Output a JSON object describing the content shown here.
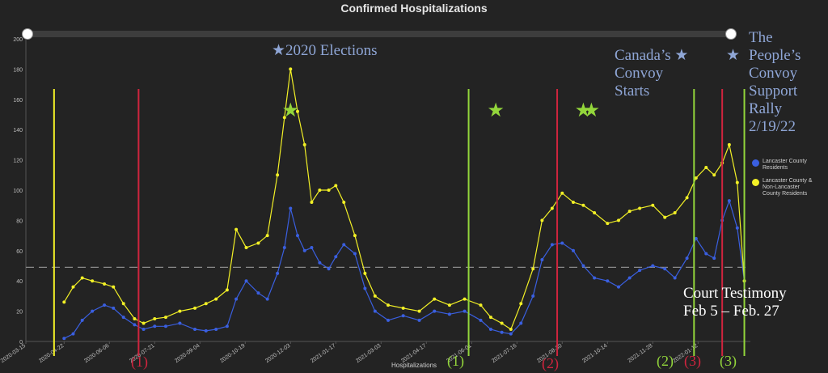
{
  "title": "Confirmed Hospitalizations",
  "x_axis_title": "Hospitalizations",
  "legend": [
    {
      "label": "Lancaster County Residents",
      "color": "#3a5fe0"
    },
    {
      "label": "Lancaster County & Non-Lancaster County Residents",
      "color": "#f2f026"
    }
  ],
  "annotations": {
    "elections": "2020 Elections",
    "canada": [
      "Canada’s",
      "Convoy",
      "Starts"
    ],
    "peoples": [
      "The",
      "People’s",
      "Convoy",
      "Support",
      "Rally",
      "2/19/22"
    ],
    "court": [
      "Court Testimony",
      "Feb 5 – Feb. 27"
    ]
  },
  "markers": [
    {
      "text": "(1)",
      "color": "#d0243e"
    },
    {
      "text": "(1)",
      "color": "#93d63b"
    },
    {
      "text": "(2)",
      "color": "#d0243e"
    },
    {
      "text": "(2)",
      "color": "#93d63b"
    },
    {
      "text": "(3)",
      "color": "#d0243e"
    },
    {
      "text": "(3)",
      "color": "#93d63b"
    }
  ],
  "chart_data": {
    "type": "line",
    "title": "Confirmed Hospitalizations",
    "xlabel": "Hospitalizations",
    "ylabel": "",
    "ylim": [
      0,
      200
    ],
    "yticks": [
      0,
      20,
      40,
      60,
      80,
      100,
      120,
      140,
      160,
      180,
      200
    ],
    "xtick_labels": [
      "2020-03-15",
      "2020-04-22",
      "2020-06-06",
      "2020-07-21",
      "2020-09-04",
      "2020-10-19",
      "2020-12-03",
      "2021-01-17",
      "2021-03-03",
      "2021-04-17",
      "2021-06-01",
      "2021-07-16",
      "2021-08-30",
      "2021-10-14",
      "2021-11-28",
      "2022-01-12"
    ],
    "reference_line": 49,
    "x": [
      "2020-04-22",
      "2020-05-01",
      "2020-05-10",
      "2020-05-20",
      "2020-06-01",
      "2020-06-10",
      "2020-06-20",
      "2020-07-01",
      "2020-07-10",
      "2020-07-21",
      "2020-08-01",
      "2020-08-15",
      "2020-08-30",
      "2020-09-10",
      "2020-09-20",
      "2020-10-01",
      "2020-10-10",
      "2020-10-20",
      "2020-11-01",
      "2020-11-10",
      "2020-11-20",
      "2020-11-27",
      "2020-12-03",
      "2020-12-10",
      "2020-12-17",
      "2020-12-24",
      "2021-01-01",
      "2021-01-10",
      "2021-01-17",
      "2021-01-25",
      "2021-02-05",
      "2021-02-15",
      "2021-02-25",
      "2021-03-10",
      "2021-03-25",
      "2021-04-10",
      "2021-04-25",
      "2021-05-10",
      "2021-05-25",
      "2021-06-10",
      "2021-06-20",
      "2021-07-01",
      "2021-07-10",
      "2021-07-20",
      "2021-08-01",
      "2021-08-10",
      "2021-08-20",
      "2021-08-30",
      "2021-09-10",
      "2021-09-20",
      "2021-10-01",
      "2021-10-14",
      "2021-10-25",
      "2021-11-05",
      "2021-11-15",
      "2021-11-28",
      "2021-12-10",
      "2021-12-20",
      "2022-01-01",
      "2022-01-10",
      "2022-01-20",
      "2022-01-28",
      "2022-02-05",
      "2022-02-12",
      "2022-02-20",
      "2022-02-27"
    ],
    "series": [
      {
        "name": "Lancaster County Residents",
        "color": "#3a5fe0",
        "values": [
          2,
          5,
          14,
          20,
          24,
          22,
          16,
          11,
          8,
          10,
          10,
          12,
          8,
          7,
          8,
          10,
          28,
          40,
          32,
          28,
          45,
          62,
          88,
          70,
          60,
          62,
          52,
          48,
          56,
          64,
          58,
          35,
          20,
          14,
          17,
          14,
          20,
          18,
          20,
          14,
          8,
          6,
          5,
          12,
          30,
          54,
          64,
          65,
          60,
          50,
          42,
          40,
          36,
          42,
          47,
          50,
          48,
          42,
          55,
          68,
          58,
          55,
          80,
          93,
          75,
          40
        ]
      },
      {
        "name": "Lancaster County & Non-Lancaster County Residents",
        "color": "#f2f026",
        "values": [
          26,
          36,
          42,
          40,
          38,
          36,
          25,
          15,
          12,
          15,
          16,
          20,
          22,
          25,
          28,
          34,
          74,
          62,
          65,
          70,
          110,
          148,
          180,
          152,
          130,
          92,
          100,
          100,
          103,
          92,
          70,
          45,
          30,
          24,
          22,
          20,
          28,
          24,
          28,
          24,
          16,
          12,
          8,
          25,
          48,
          80,
          88,
          98,
          92,
          90,
          85,
          78,
          80,
          86,
          88,
          90,
          82,
          85,
          95,
          108,
          115,
          110,
          118,
          130,
          105,
          40
        ]
      }
    ],
    "vertical_markers": [
      {
        "x": "2020-04-12",
        "color": "#f2f026"
      },
      {
        "x": "2020-07-05",
        "color": "#d0243e"
      },
      {
        "x": "2021-05-29",
        "color": "#93d63b"
      },
      {
        "x": "2021-08-25",
        "color": "#d0243e"
      },
      {
        "x": "2022-01-08",
        "color": "#93d63b"
      },
      {
        "x": "2022-02-05",
        "color": "#d0243e"
      },
      {
        "x": "2022-02-27",
        "color": "#93d63b"
      }
    ],
    "star_markers": [
      {
        "x": "2020-12-03",
        "y": 153,
        "color": "#93d63b"
      },
      {
        "x": "2021-06-25",
        "y": 153,
        "color": "#93d63b"
      },
      {
        "x": "2021-09-20",
        "y": 153,
        "color": "#93d63b"
      },
      {
        "x": "2021-09-28",
        "y": 153,
        "color": "#93d63b"
      }
    ],
    "legend_position": "right"
  }
}
